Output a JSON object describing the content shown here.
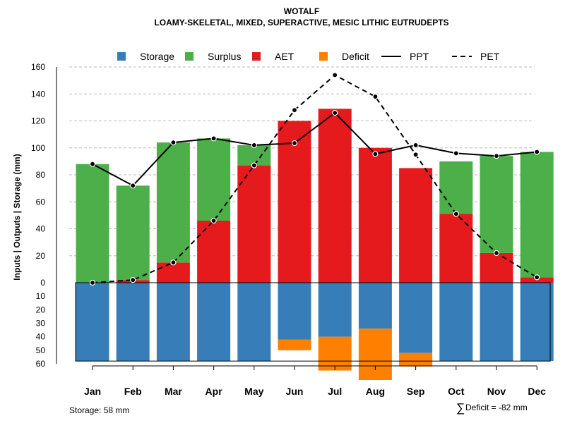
{
  "chart_data": {
    "type": "bar",
    "title": "WOTALF",
    "subtitle": "LOAMY-SKELETAL, MIXED, SUPERACTIVE, MESIC LITHIC EUTRUDEPTS",
    "ylabel": "Inputs | Outputs | Storage    (mm)",
    "categories": [
      "Jan",
      "Feb",
      "Mar",
      "Apr",
      "May",
      "Jun",
      "Jul",
      "Aug",
      "Sep",
      "Oct",
      "Nov",
      "Dec"
    ],
    "upper_ylim": [
      0,
      160
    ],
    "upper_ticks": [
      "0",
      "20",
      "40",
      "60",
      "80",
      "100",
      "120",
      "140",
      "160"
    ],
    "lower_ylim": [
      0,
      60
    ],
    "lower_ticks": [
      "0",
      "10",
      "20",
      "30",
      "40",
      "50",
      "60"
    ],
    "grid": true,
    "legend_position": "top",
    "legend": [
      {
        "label": "Storage",
        "kind": "box",
        "color": "#377EB8"
      },
      {
        "label": "Surplus",
        "kind": "box",
        "color": "#4DAF4A"
      },
      {
        "label": "AET",
        "kind": "box",
        "color": "#E41A1C"
      },
      {
        "label": "Deficit",
        "kind": "box",
        "color": "#FF7F00"
      },
      {
        "label": "PPT",
        "kind": "solid"
      },
      {
        "label": "PET",
        "kind": "dashed"
      }
    ],
    "series": [
      {
        "name": "AET",
        "color": "#E41A1C",
        "values": [
          0,
          2,
          15,
          46,
          87,
          120,
          129,
          100,
          85,
          51,
          22,
          4
        ]
      },
      {
        "name": "Surplus",
        "color": "#4DAF4A",
        "values": [
          88,
          70,
          89,
          61,
          15,
          0,
          0,
          0,
          0,
          39,
          72,
          93
        ]
      },
      {
        "name": "Storage",
        "color": "#377EB8",
        "values": [
          58,
          58,
          58,
          58,
          58,
          42,
          40,
          34,
          52,
          58,
          58,
          58
        ]
      },
      {
        "name": "Deficit",
        "color": "#FF7F00",
        "values": [
          0,
          0,
          0,
          0,
          0,
          8,
          25,
          38,
          10,
          0,
          0,
          0
        ]
      },
      {
        "name": "PPT",
        "values": [
          88,
          72,
          104,
          107,
          102,
          103.5,
          126,
          95.5,
          102,
          96,
          94,
          97
        ]
      },
      {
        "name": "PET",
        "values": [
          0,
          2,
          15,
          46,
          87,
          128,
          154,
          138,
          95,
          51,
          22,
          4
        ]
      }
    ],
    "storage_capacity": 58,
    "footer_left": "Storage: 58 mm",
    "footer_right_symbol": "∑",
    "footer_right": "Deficit = -82 mm"
  }
}
